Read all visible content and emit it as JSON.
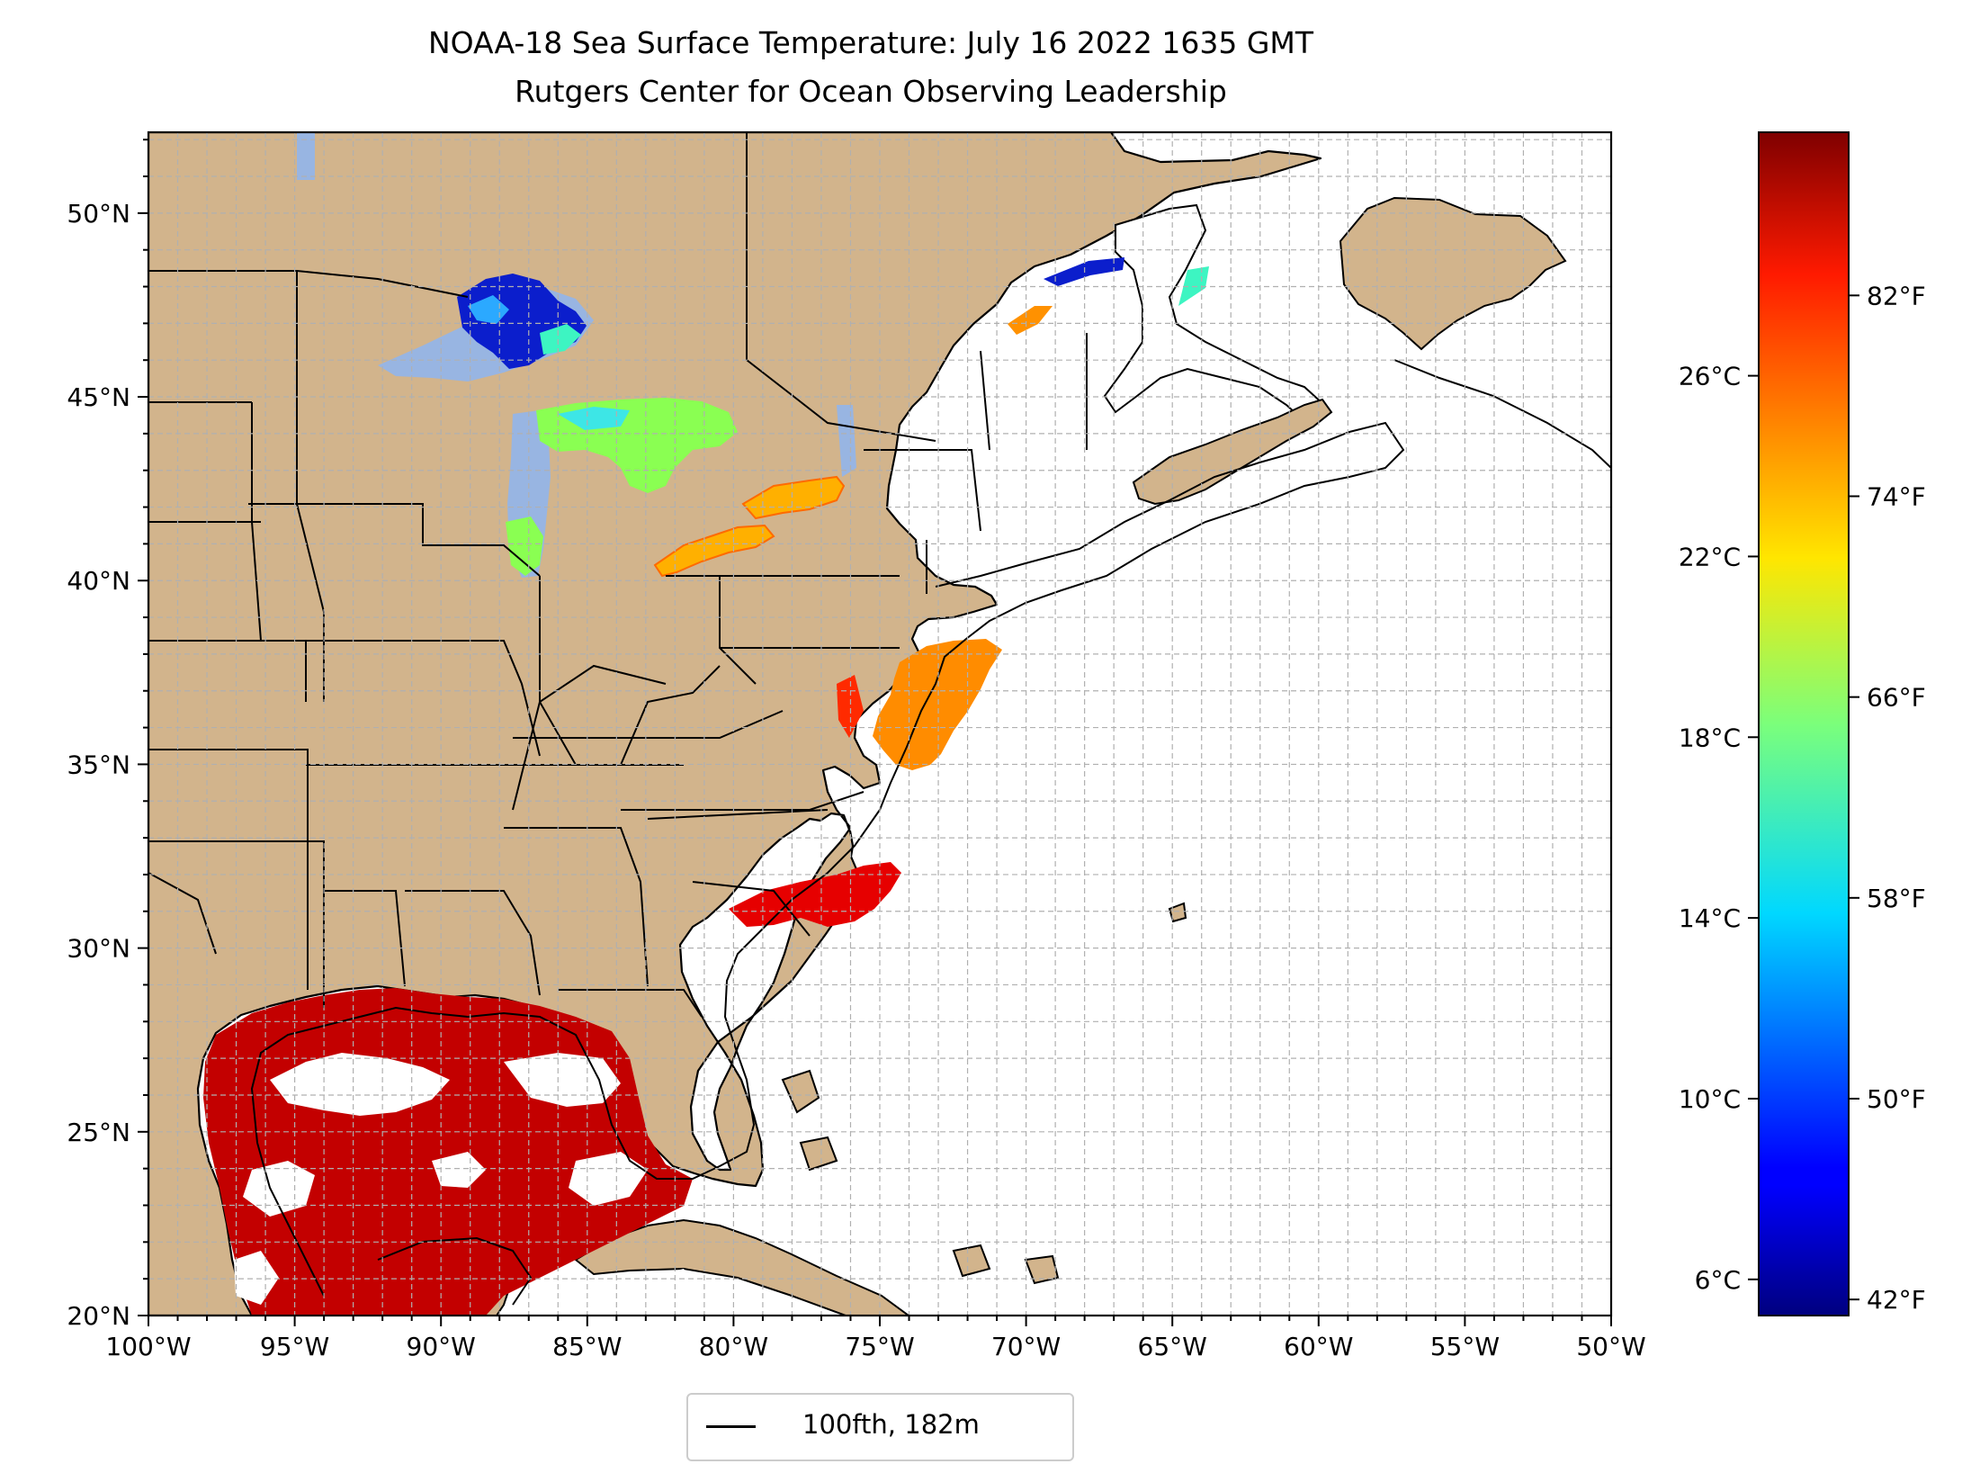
{
  "title": {
    "line1": "NOAA-18 Sea Surface Temperature: July 16 2022 1635 GMT",
    "line2": "Rutgers Center for Ocean Observing Leadership"
  },
  "map": {
    "lon_range": [
      -100,
      -50
    ],
    "lat_range": [
      20,
      52.2
    ],
    "x_ticks": [
      "100°W",
      "95°W",
      "90°W",
      "85°W",
      "80°W",
      "75°W",
      "70°W",
      "65°W",
      "60°W",
      "55°W",
      "50°W"
    ],
    "y_ticks": [
      "20°N",
      "25°N",
      "30°N",
      "35°N",
      "40°N",
      "45°N",
      "50°N"
    ],
    "gridlines": true,
    "colors": {
      "land": "#d2b48c",
      "ocean_no_data": "#ffffff",
      "lakes_no_data": "#98b5e2",
      "gulf_sst": "#c30000",
      "grid": "#b0b0b0"
    }
  },
  "colorbar": {
    "colormap": "jet",
    "celsius_ticks": [
      "6°C",
      "10°C",
      "14°C",
      "18°C",
      "22°C",
      "26°C"
    ],
    "fahrenheit_ticks": [
      "42°F",
      "50°F",
      "58°F",
      "66°F",
      "74°F",
      "82°F"
    ]
  },
  "legend": {
    "label": "100fth, 182m",
    "placement": "bottom-center"
  }
}
